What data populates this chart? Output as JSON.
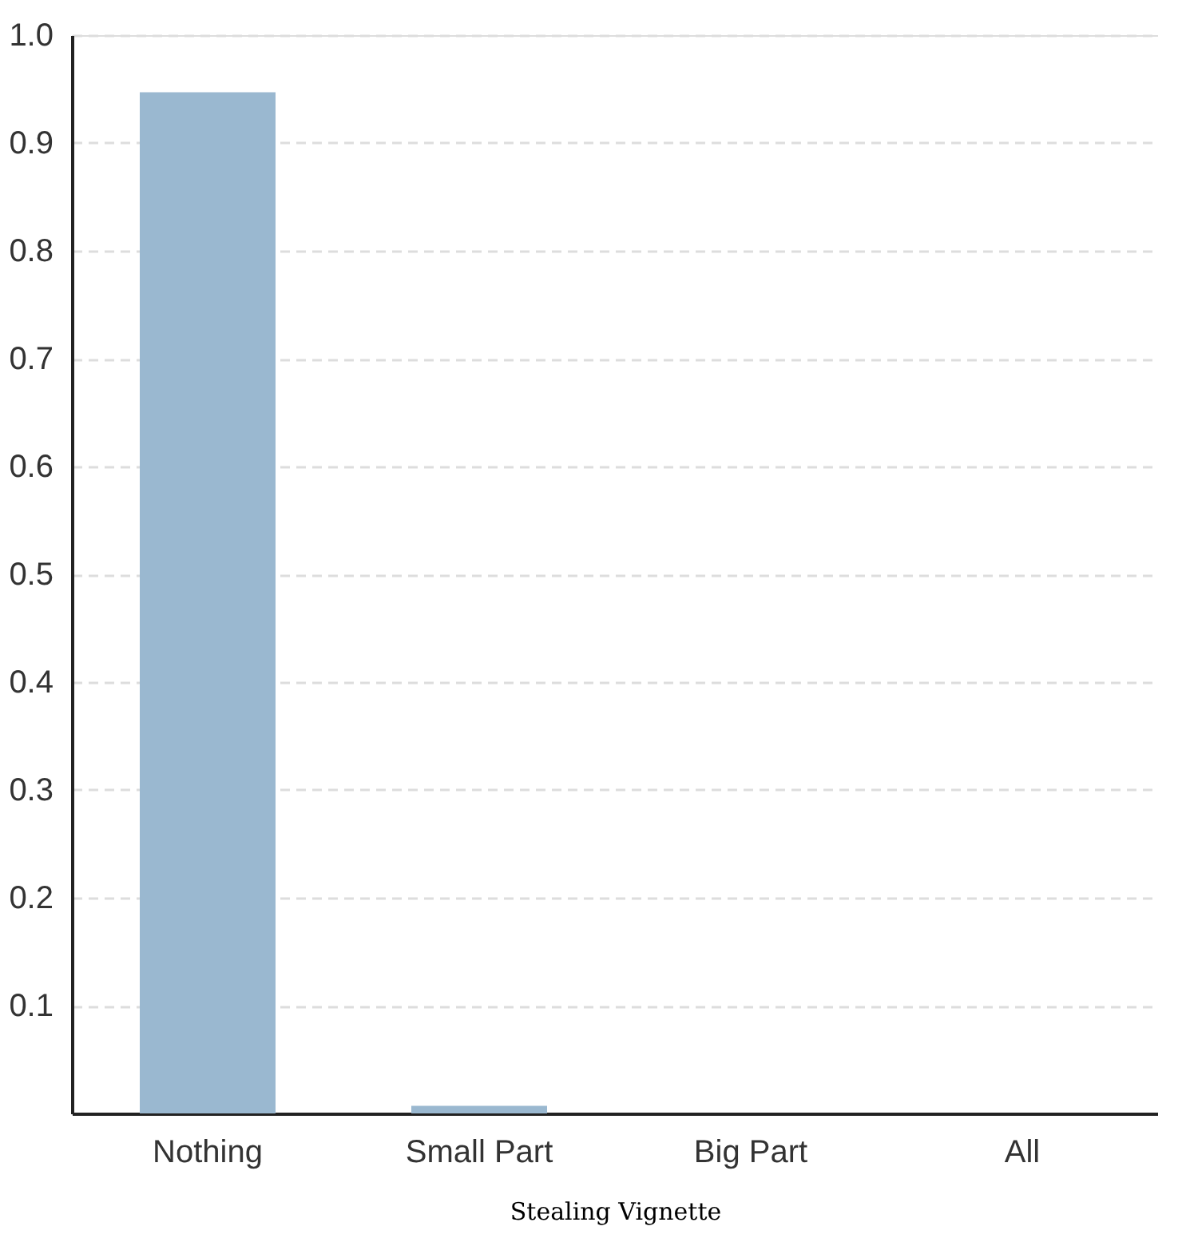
{
  "chart_data": {
    "type": "bar",
    "xlabel": "Stealing Vignette",
    "categories": [
      "Nothing",
      "Small Part",
      "Big Part",
      "All"
    ],
    "values": [
      0.947,
      0.007,
      0,
      0
    ],
    "color": "#9ab8d0",
    "ylim": [
      0,
      1
    ],
    "yticks": [
      0.1,
      0.2,
      0.3,
      0.4,
      0.5,
      0.6,
      0.7,
      0.8,
      0.9,
      {
        "value": 1,
        "label": "1.0"
      }
    ],
    "grid": "y"
  }
}
